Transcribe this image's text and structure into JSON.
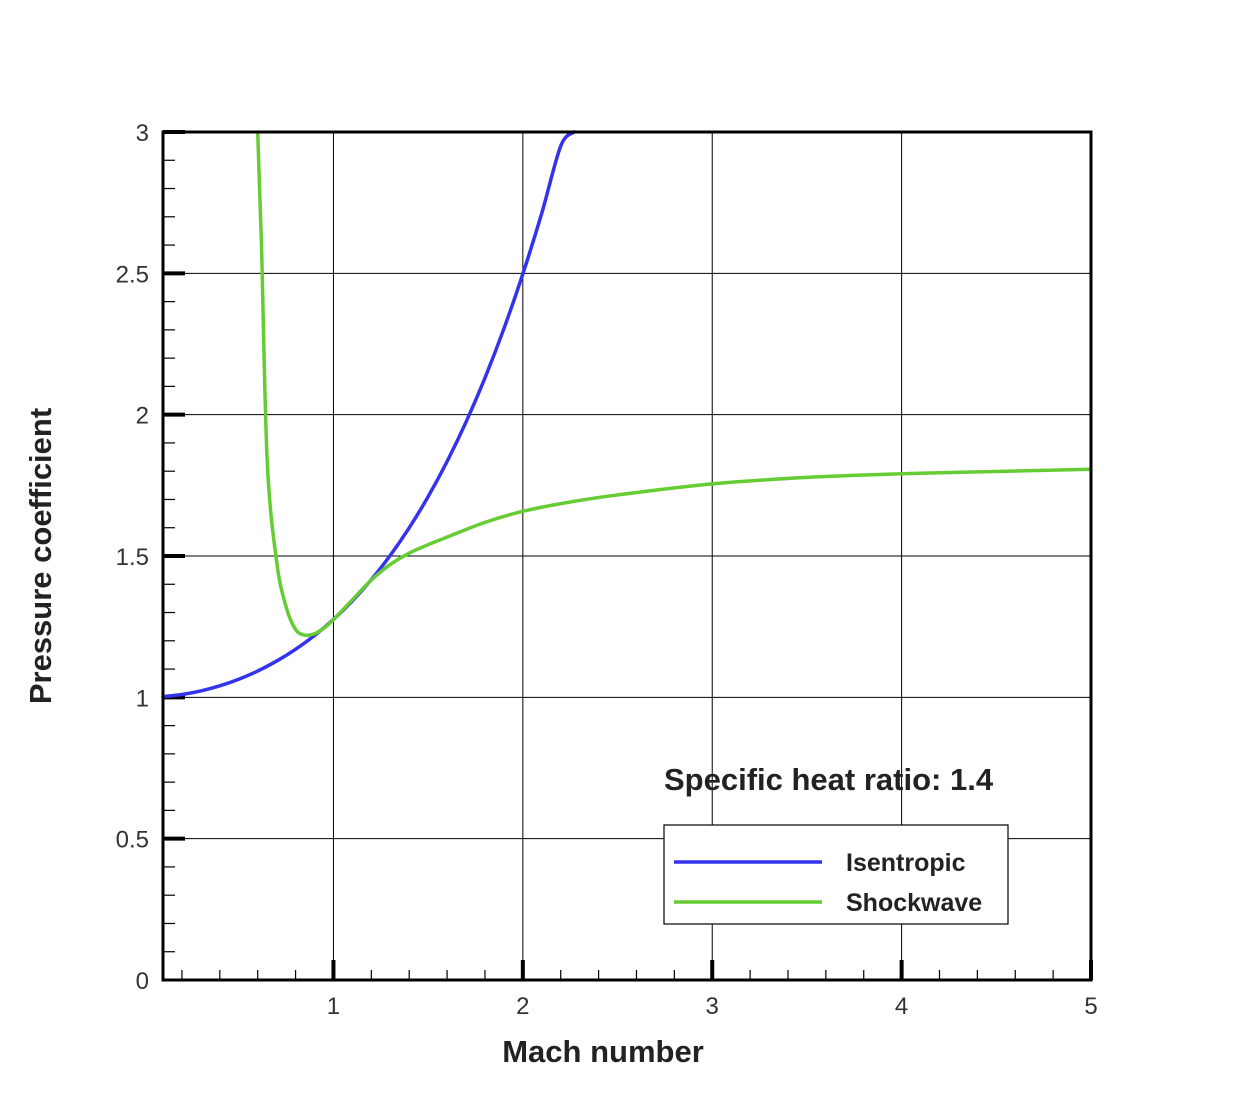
{
  "chart_data": {
    "type": "line",
    "title": "",
    "xlabel": "Mach number",
    "ylabel": "Pressure coefficient",
    "xlim": [
      0.1,
      5
    ],
    "ylim": [
      0,
      3
    ],
    "x_ticks": [
      1,
      2,
      3,
      4,
      5
    ],
    "x_tick_labels": [
      "1",
      "2",
      "3",
      "4",
      "5"
    ],
    "y_ticks": [
      0,
      0.5,
      1,
      1.5,
      2,
      2.5,
      3
    ],
    "y_tick_labels": [
      "0",
      "0.5",
      "1",
      "1.5",
      "2",
      "2.5",
      "3"
    ],
    "grid": true,
    "legend_position": "bottom-right",
    "annotation": "Specific heat ratio: 1.4",
    "series": [
      {
        "name": "Isentropic",
        "color": "#3333ee",
        "x": [
          0.1,
          0.2,
          0.3,
          0.4,
          0.5,
          0.6,
          0.7,
          0.8,
          0.9,
          1.0,
          1.1,
          1.2,
          1.3,
          1.4,
          1.5,
          1.6,
          1.7,
          1.8,
          1.9,
          2.0,
          2.1,
          2.2,
          2.27
        ],
        "y": [
          1.0025,
          1.01,
          1.0227,
          1.0406,
          1.064,
          1.0931,
          1.1283,
          1.17,
          1.2187,
          1.2756,
          1.3412,
          1.4165,
          1.5023,
          1.5998,
          1.71,
          1.8343,
          1.9739,
          2.13,
          2.3042,
          2.4979,
          2.7128,
          2.9503,
          3.0
        ]
      },
      {
        "name": "Shockwave",
        "color": "#66cc33",
        "x": [
          0.6,
          0.62,
          0.65,
          0.7,
          0.75,
          0.8,
          0.85,
          0.9,
          0.95,
          1.0,
          1.1,
          1.2,
          1.3,
          1.4,
          1.5,
          1.6,
          1.8,
          2.0,
          2.25,
          2.5,
          3.0,
          3.5,
          4.0,
          4.5,
          5.0
        ],
        "y": [
          3.0,
          2.6,
          1.84,
          1.48,
          1.32,
          1.24,
          1.22,
          1.225,
          1.245,
          1.275,
          1.345,
          1.415,
          1.47,
          1.51,
          1.54,
          1.567,
          1.619,
          1.658,
          1.691,
          1.716,
          1.755,
          1.778,
          1.791,
          1.799,
          1.807
        ]
      }
    ]
  }
}
